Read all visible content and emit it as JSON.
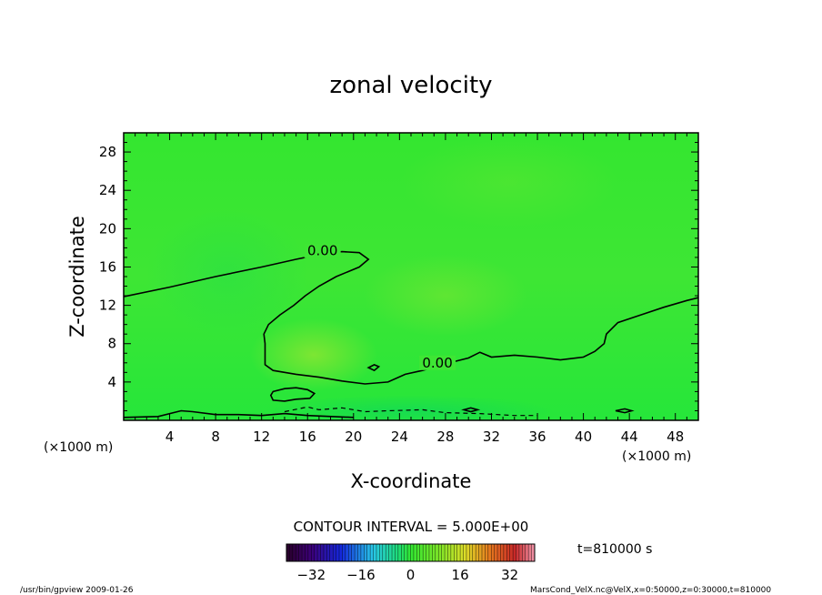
{
  "chart_data": {
    "type": "heatmap",
    "title": "zonal velocity",
    "xlabel": "X-coordinate",
    "ylabel": "Z-coordinate",
    "x_unit": "(×1000 m)",
    "y_unit": "(×1000 m)",
    "x_ticks": [
      4,
      8,
      12,
      16,
      20,
      24,
      28,
      32,
      36,
      40,
      44,
      48
    ],
    "y_ticks": [
      4,
      8,
      12,
      16,
      20,
      24,
      28
    ],
    "xlim": [
      0,
      50
    ],
    "ylim": [
      0,
      30
    ],
    "contour_interval_label": "CONTOUR INTERVAL = 5.000E+00",
    "contour_label": "0.00",
    "zero_contour": {
      "upper_branch": [
        [
          0,
          12.9
        ],
        [
          4,
          13.9
        ],
        [
          8,
          15.0
        ],
        [
          12,
          16.0
        ],
        [
          15,
          16.8
        ],
        [
          17,
          17.3
        ],
        [
          19,
          17.6
        ],
        [
          20.5,
          17.5
        ],
        [
          21.3,
          16.8
        ],
        [
          20.5,
          16.0
        ],
        [
          18.5,
          15.0
        ],
        [
          17,
          14.0
        ],
        [
          15.8,
          13.0
        ],
        [
          14.8,
          12.0
        ],
        [
          13.6,
          11.0
        ],
        [
          12.6,
          10.0
        ],
        [
          12.2,
          9.0
        ],
        [
          12.3,
          8.0
        ],
        [
          12.3,
          7.0
        ],
        [
          12.3,
          5.8
        ],
        [
          13,
          5.2
        ],
        [
          15,
          4.8
        ],
        [
          17,
          4.5
        ],
        [
          19,
          4.1
        ],
        [
          21,
          3.8
        ],
        [
          23,
          4.0
        ],
        [
          24.5,
          4.8
        ],
        [
          26,
          5.2
        ],
        [
          28,
          5.9
        ],
        [
          30,
          6.5
        ],
        [
          31,
          7.1
        ],
        [
          32,
          6.6
        ],
        [
          34,
          6.8
        ],
        [
          36,
          6.6
        ],
        [
          38,
          6.3
        ],
        [
          40,
          6.6
        ],
        [
          41,
          7.2
        ],
        [
          41.8,
          8.0
        ],
        [
          42,
          9.0
        ],
        [
          43,
          10.2
        ],
        [
          45,
          11.0
        ],
        [
          47,
          11.8
        ],
        [
          49,
          12.5
        ],
        [
          50,
          12.8
        ]
      ],
      "closed_loops": [
        [
          [
            13,
            3.0
          ],
          [
            14,
            3.3
          ],
          [
            15,
            3.4
          ],
          [
            16,
            3.2
          ],
          [
            16.6,
            2.8
          ],
          [
            16.2,
            2.3
          ],
          [
            15,
            2.2
          ],
          [
            14,
            2.0
          ],
          [
            13,
            2.1
          ],
          [
            12.8,
            2.6
          ],
          [
            13,
            3.0
          ]
        ],
        [
          [
            21.3,
            5.5
          ],
          [
            21.8,
            5.8
          ],
          [
            22.2,
            5.6
          ],
          [
            21.8,
            5.2
          ],
          [
            21.3,
            5.5
          ]
        ],
        [
          [
            42.8,
            1.0
          ],
          [
            43.6,
            1.2
          ],
          [
            44.2,
            1.0
          ],
          [
            43.6,
            0.8
          ],
          [
            42.8,
            1.0
          ]
        ],
        [
          [
            29.6,
            1.1
          ],
          [
            30.2,
            1.3
          ],
          [
            30.8,
            1.1
          ],
          [
            30.2,
            0.9
          ],
          [
            29.6,
            1.1
          ]
        ]
      ],
      "near_surface_line": [
        [
          0,
          0.3
        ],
        [
          3,
          0.4
        ],
        [
          5,
          1.0
        ],
        [
          6,
          0.9
        ],
        [
          8,
          0.6
        ],
        [
          10,
          0.6
        ],
        [
          12,
          0.5
        ],
        [
          14,
          0.7
        ],
        [
          16,
          0.5
        ],
        [
          20,
          0.3
        ]
      ]
    },
    "negative_contour_dashes": [
      [
        [
          14,
          0.9
        ],
        [
          16,
          1.4
        ],
        [
          17,
          1.1
        ],
        [
          19,
          1.3
        ],
        [
          21,
          0.9
        ],
        [
          23,
          1.0
        ],
        [
          26,
          1.1
        ],
        [
          28,
          0.8
        ],
        [
          31,
          0.7
        ],
        [
          34,
          0.5
        ],
        [
          36,
          0.5
        ]
      ]
    ],
    "colorbar": {
      "ticks": [
        -32,
        -16,
        0,
        16,
        32
      ],
      "range": [
        -40,
        40
      ]
    },
    "time_label": "t=810000 s",
    "footer_left": "/usr/bin/gpview   2009-01-26",
    "footer_right": "MarsCond_VelX.nc@VelX,x=0:50000,z=0:30000,t=810000",
    "colors": {
      "field_base": "#2ee62e",
      "field_light": "#78e632",
      "field_dark": "#14dc28",
      "contour": "#000000"
    }
  }
}
